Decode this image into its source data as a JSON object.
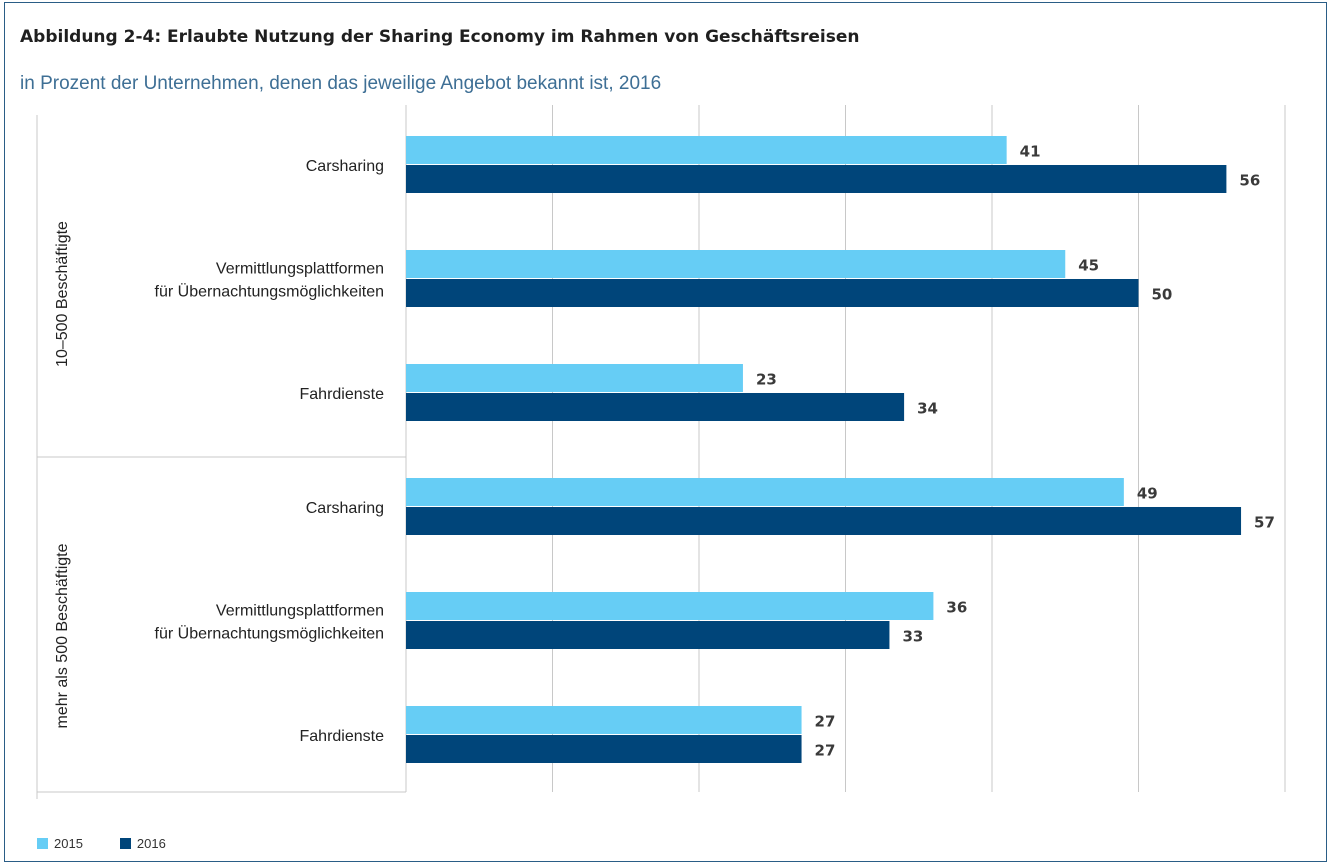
{
  "figure": {
    "title": "Abbildung 2-4: Erlaubte Nutzung der Sharing Economy im Rahmen von Geschäftsreisen",
    "subtitle": "in Prozent der Unternehmen, denen das jeweilige Angebot bekannt ist, 2016"
  },
  "chart_data": {
    "type": "bar",
    "orientation": "horizontal",
    "xlim": [
      0,
      60
    ],
    "grid": true,
    "legend_position": "bottom-left",
    "groups": [
      {
        "name": "10–500 Beschäftigte",
        "categories": [
          [
            "Carsharing"
          ],
          [
            "Vermittlungsplattformen",
            "für Übernachtungsmöglichkeiten"
          ],
          [
            "Fahrdienste"
          ]
        ]
      },
      {
        "name": "mehr als 500 Beschäftigte",
        "categories": [
          [
            "Carsharing"
          ],
          [
            "Vermittlungsplattformen",
            "für Übernachtungsmöglichkeiten"
          ],
          [
            "Fahrdienste"
          ]
        ]
      }
    ],
    "series": [
      {
        "name": "2015",
        "color": "#66cdf5",
        "values": [
          41,
          45,
          23,
          49,
          36,
          27
        ]
      },
      {
        "name": "2016",
        "color": "#00457a",
        "values": [
          56,
          50,
          34,
          57,
          33,
          27
        ]
      }
    ]
  }
}
